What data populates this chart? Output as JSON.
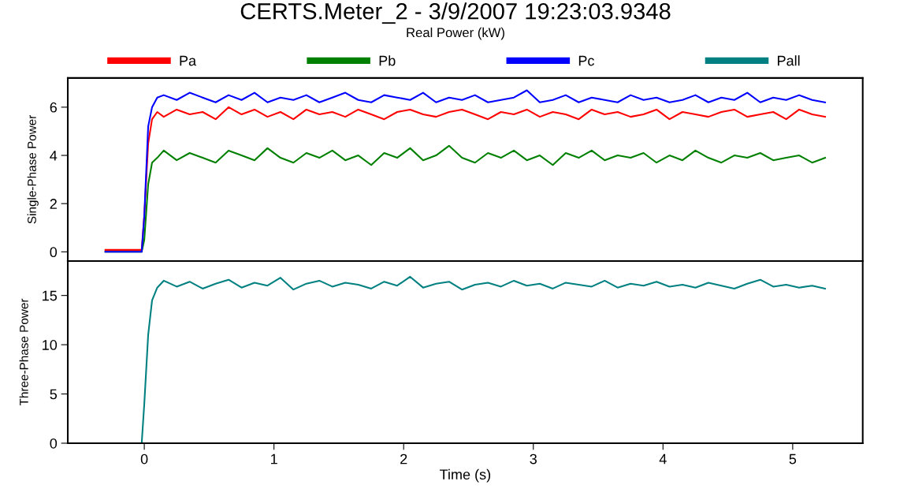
{
  "chart_data": [
    {
      "type": "line",
      "title": "CERTS.Meter_2 - 3/9/2007 19:23:03.9348",
      "subtitle": "Real Power (kW)",
      "ylabel": "Single-Phase Power",
      "legend": "top",
      "tick_labels": "y",
      "x": [
        -0.3,
        -0.02,
        0.0,
        0.03,
        0.06,
        0.1,
        0.15,
        0.25,
        0.35,
        0.45,
        0.55,
        0.65,
        0.75,
        0.85,
        0.95,
        1.05,
        1.15,
        1.25,
        1.35,
        1.45,
        1.55,
        1.65,
        1.75,
        1.85,
        1.95,
        2.05,
        2.15,
        2.25,
        2.35,
        2.45,
        2.55,
        2.65,
        2.75,
        2.85,
        2.95,
        3.05,
        3.15,
        3.25,
        3.35,
        3.45,
        3.55,
        3.65,
        3.75,
        3.85,
        3.95,
        4.05,
        4.15,
        4.25,
        4.35,
        4.45,
        4.55,
        4.65,
        4.75,
        4.85,
        4.95,
        5.05,
        5.15,
        5.25
      ],
      "series": [
        {
          "name": "Pa",
          "color": "#ff0000",
          "values": [
            0.08,
            0.08,
            1.5,
            4.5,
            5.5,
            5.8,
            5.6,
            5.9,
            5.7,
            5.8,
            5.5,
            6.0,
            5.7,
            5.9,
            5.6,
            5.8,
            5.5,
            5.9,
            5.7,
            5.8,
            5.6,
            5.9,
            5.7,
            5.5,
            5.8,
            5.9,
            5.7,
            5.6,
            5.8,
            5.9,
            5.7,
            5.5,
            5.8,
            5.7,
            5.9,
            5.6,
            5.8,
            5.7,
            5.5,
            5.9,
            5.7,
            5.8,
            5.6,
            5.7,
            5.9,
            5.5,
            5.8,
            5.7,
            5.6,
            5.8,
            5.9,
            5.6,
            5.7,
            5.8,
            5.5,
            5.9,
            5.7,
            5.6
          ]
        },
        {
          "name": "Pb",
          "color": "#008000",
          "values": [
            0,
            0,
            0.5,
            2.8,
            3.7,
            3.9,
            4.2,
            3.8,
            4.1,
            3.9,
            3.7,
            4.2,
            4.0,
            3.8,
            4.3,
            3.9,
            3.7,
            4.1,
            3.9,
            4.2,
            3.8,
            4.0,
            3.6,
            4.1,
            3.9,
            4.3,
            3.8,
            4.0,
            4.4,
            3.9,
            3.7,
            4.1,
            3.9,
            4.2,
            3.8,
            4.0,
            3.6,
            4.1,
            3.9,
            4.2,
            3.8,
            4.0,
            3.9,
            4.1,
            3.7,
            4.0,
            3.8,
            4.2,
            3.9,
            3.7,
            4.0,
            3.9,
            4.1,
            3.8,
            3.9,
            4.0,
            3.7,
            3.9
          ]
        },
        {
          "name": "Pc",
          "color": "#0000ff",
          "values": [
            0,
            0,
            1.5,
            5.2,
            6.0,
            6.4,
            6.5,
            6.3,
            6.6,
            6.4,
            6.2,
            6.5,
            6.3,
            6.6,
            6.2,
            6.4,
            6.3,
            6.5,
            6.2,
            6.4,
            6.6,
            6.3,
            6.2,
            6.5,
            6.4,
            6.3,
            6.6,
            6.2,
            6.4,
            6.3,
            6.5,
            6.2,
            6.3,
            6.4,
            6.7,
            6.2,
            6.3,
            6.5,
            6.2,
            6.4,
            6.3,
            6.2,
            6.5,
            6.3,
            6.4,
            6.2,
            6.3,
            6.5,
            6.2,
            6.4,
            6.3,
            6.6,
            6.2,
            6.4,
            6.3,
            6.5,
            6.3,
            6.2
          ]
        }
      ],
      "xlim": [
        -0.59,
        5.54
      ],
      "ylim": [
        -0.38,
        7.21
      ],
      "xticks": [
        0,
        1,
        2,
        3,
        4,
        5
      ],
      "yticks": [
        0,
        2,
        4,
        6
      ]
    },
    {
      "type": "line",
      "xlabel": "Time (s)",
      "ylabel": "Three-Phase Power",
      "x": [
        -0.3,
        -0.02,
        0.0,
        0.03,
        0.06,
        0.1,
        0.15,
        0.25,
        0.35,
        0.45,
        0.55,
        0.65,
        0.75,
        0.85,
        0.95,
        1.05,
        1.15,
        1.25,
        1.35,
        1.45,
        1.55,
        1.65,
        1.75,
        1.85,
        1.95,
        2.05,
        2.15,
        2.25,
        2.35,
        2.45,
        2.55,
        2.65,
        2.75,
        2.85,
        2.95,
        3.05,
        3.15,
        3.25,
        3.35,
        3.45,
        3.55,
        3.65,
        3.75,
        3.85,
        3.95,
        4.05,
        4.15,
        4.25,
        4.35,
        4.45,
        4.55,
        4.65,
        4.75,
        4.85,
        4.95,
        5.05,
        5.15,
        5.25
      ],
      "series": [
        {
          "name": "Pall",
          "color": "#008080",
          "values": [
            0,
            0,
            4,
            11,
            14.5,
            15.8,
            16.5,
            15.9,
            16.4,
            15.7,
            16.2,
            16.6,
            15.8,
            16.3,
            16.0,
            16.8,
            15.6,
            16.2,
            16.5,
            15.9,
            16.3,
            16.1,
            15.7,
            16.4,
            16.0,
            16.9,
            15.8,
            16.2,
            16.4,
            15.6,
            16.1,
            16.3,
            15.9,
            16.5,
            16.0,
            16.2,
            15.7,
            16.3,
            16.1,
            15.9,
            16.5,
            15.8,
            16.2,
            16.0,
            16.4,
            15.9,
            16.1,
            15.8,
            16.3,
            16.0,
            15.7,
            16.2,
            16.6,
            15.9,
            16.1,
            15.8,
            16.0,
            15.7
          ]
        }
      ],
      "xlim": [
        -0.59,
        5.54
      ],
      "ylim": [
        0,
        18.5
      ],
      "xticks": [
        0,
        1,
        2,
        3,
        4,
        5
      ],
      "yticks": [
        0,
        5,
        10,
        15
      ]
    }
  ]
}
